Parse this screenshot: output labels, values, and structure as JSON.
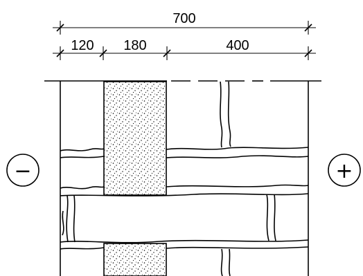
{
  "dimensions": {
    "total": "700",
    "segments": [
      "120",
      "180",
      "400"
    ]
  },
  "signs": {
    "left": "−",
    "right": "+"
  }
}
